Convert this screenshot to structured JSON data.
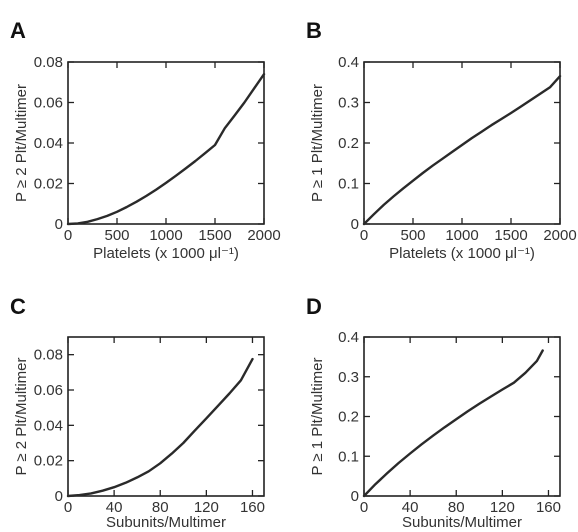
{
  "chart_data": [
    {
      "panel": "A",
      "type": "line",
      "xlabel": "Platelets (x 1000 μl⁻¹)",
      "ylabel": "P ≥ 2 Plt/Multimer",
      "xlim": [
        0,
        2000
      ],
      "ylim": [
        0,
        0.08
      ],
      "xticks": [
        0,
        500,
        1000,
        1500,
        2000
      ],
      "yticks": [
        0,
        0.02,
        0.04,
        0.06,
        0.08
      ],
      "xtick_labels": [
        "0",
        "500",
        "1000",
        "1500",
        "2000"
      ],
      "ytick_labels": [
        "0",
        "0.02",
        "0.04",
        "0.06",
        "0.08"
      ],
      "grid": false,
      "series": [
        {
          "x": [
            0,
            100,
            200,
            300,
            400,
            500,
            600,
            700,
            800,
            900,
            1000,
            1100,
            1200,
            1300,
            1400,
            1500,
            1600,
            1700,
            1800,
            1900,
            2000
          ],
          "y": [
            0,
            0.0003,
            0.0011,
            0.0024,
            0.004,
            0.006,
            0.0084,
            0.011,
            0.0139,
            0.017,
            0.0203,
            0.0238,
            0.0274,
            0.0311,
            0.035,
            0.039,
            0.0473,
            0.0536,
            0.06,
            0.067,
            0.074
          ]
        }
      ]
    },
    {
      "panel": "B",
      "type": "line",
      "xlabel": "Platelets (x 1000 μl⁻¹)",
      "ylabel": "P ≥ 1 Plt/Multimer",
      "xlim": [
        0,
        2000
      ],
      "ylim": [
        0,
        0.4
      ],
      "xticks": [
        0,
        500,
        1000,
        1500,
        2000
      ],
      "yticks": [
        0,
        0.1,
        0.2,
        0.3,
        0.4
      ],
      "xtick_labels": [
        "0",
        "500",
        "1000",
        "1500",
        "2000"
      ],
      "ytick_labels": [
        "0",
        "0.1",
        "0.2",
        "0.3",
        "0.4"
      ],
      "grid": false,
      "series": [
        {
          "x": [
            0,
            100,
            200,
            300,
            400,
            500,
            600,
            700,
            800,
            900,
            1000,
            1100,
            1200,
            1300,
            1400,
            1500,
            1600,
            1700,
            1800,
            1900,
            2000
          ],
          "y": [
            0,
            0.024,
            0.047,
            0.068,
            0.088,
            0.107,
            0.126,
            0.144,
            0.161,
            0.178,
            0.195,
            0.212,
            0.228,
            0.244,
            0.259,
            0.274,
            0.29,
            0.306,
            0.322,
            0.338,
            0.365
          ]
        }
      ]
    },
    {
      "panel": "C",
      "type": "line",
      "xlabel": "Subunits/Multimer",
      "ylabel": "P ≥ 2 Plt/Multimer",
      "xlim": [
        0,
        170
      ],
      "ylim": [
        0,
        0.09
      ],
      "xticks": [
        0,
        40,
        80,
        120,
        160
      ],
      "yticks": [
        0,
        0.02,
        0.04,
        0.06,
        0.08
      ],
      "xtick_labels": [
        "0",
        "40",
        "80",
        "120",
        "160"
      ],
      "ytick_labels": [
        "0",
        "0.02",
        "0.04",
        "0.06",
        "0.08"
      ],
      "grid": false,
      "series": [
        {
          "x": [
            0,
            10,
            20,
            30,
            40,
            50,
            60,
            70,
            80,
            90,
            100,
            110,
            120,
            130,
            140,
            150,
            160
          ],
          "y": [
            0,
            0.0005,
            0.0015,
            0.003,
            0.005,
            0.0075,
            0.0105,
            0.014,
            0.0185,
            0.024,
            0.03,
            0.037,
            0.044,
            0.051,
            0.058,
            0.0655,
            0.0775
          ]
        }
      ]
    },
    {
      "panel": "D",
      "type": "line",
      "xlabel": "Subunits/Multimer",
      "ylabel": "P ≥ 1 Plt/Multimer",
      "xlim": [
        0,
        170
      ],
      "ylim": [
        0,
        0.4
      ],
      "xticks": [
        0,
        40,
        80,
        120,
        160
      ],
      "yticks": [
        0,
        0.1,
        0.2,
        0.3,
        0.4
      ],
      "xtick_labels": [
        "0",
        "40",
        "80",
        "120",
        "160"
      ],
      "ytick_labels": [
        "0",
        "0.1",
        "0.2",
        "0.3",
        "0.4"
      ],
      "grid": false,
      "series": [
        {
          "x": [
            0,
            10,
            20,
            30,
            40,
            50,
            60,
            70,
            80,
            90,
            100,
            110,
            120,
            130,
            140,
            150,
            155
          ],
          "y": [
            0,
            0.03,
            0.057,
            0.083,
            0.107,
            0.13,
            0.152,
            0.173,
            0.193,
            0.213,
            0.232,
            0.25,
            0.268,
            0.285,
            0.31,
            0.34,
            0.366
          ]
        }
      ]
    }
  ]
}
